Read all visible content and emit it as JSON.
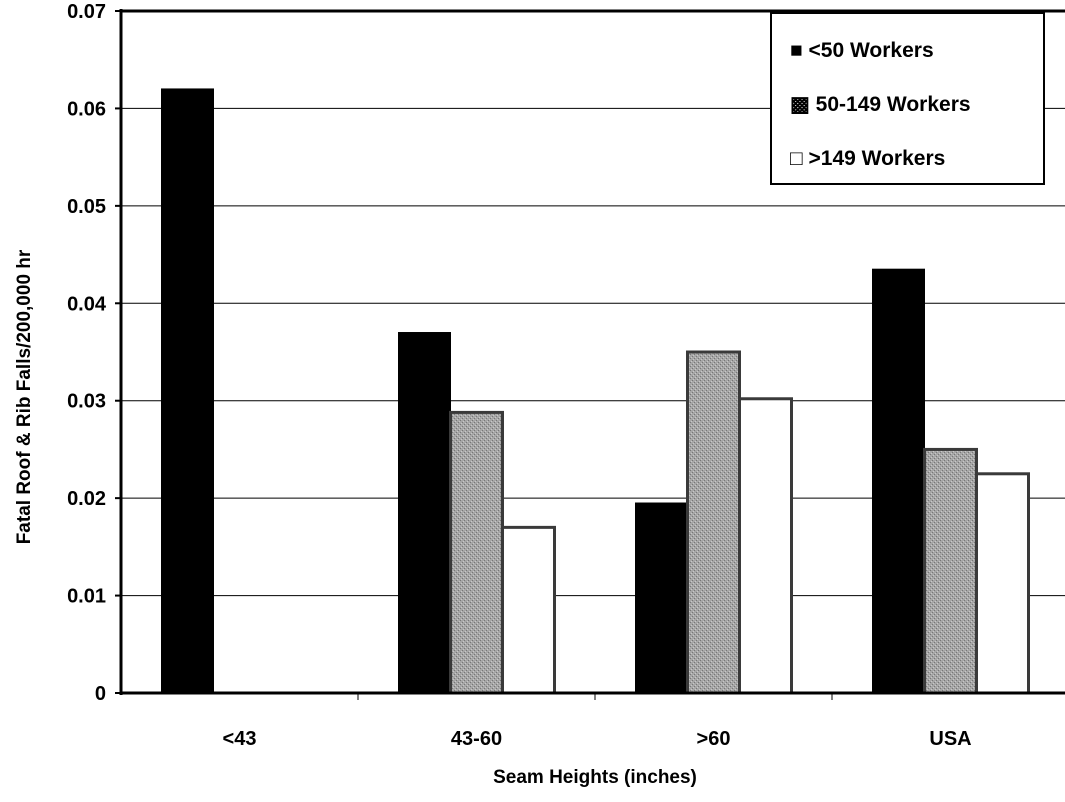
{
  "chart_data": {
    "type": "bar",
    "title": "",
    "xlabel": "Seam Heights (inches)",
    "ylabel": "Fatal Roof & Rib Falls/200,000 hr",
    "categories": [
      "<43",
      "43-60",
      ">60",
      "USA"
    ],
    "ylim": [
      0,
      0.07
    ],
    "yticks": [
      "0",
      "0.01",
      "0.02",
      "0.03",
      "0.04",
      "0.05",
      "0.06",
      "0.07"
    ],
    "grid": true,
    "legend_position": "top-right",
    "series": [
      {
        "name": "<50 Workers",
        "color": "#000000",
        "legend_label": "■ <50 Workers",
        "values": [
          0.062,
          0.037,
          0.0195,
          0.0435
        ]
      },
      {
        "name": "50-149 Workers",
        "color": "#9e9e9e",
        "legend_label": "▩ 50-149 Workers",
        "values": [
          0,
          0.0288,
          0.035,
          0.025
        ]
      },
      {
        "name": ">149 Workers",
        "color": "#ffffff",
        "legend_label": "□ >149 Workers",
        "values": [
          0,
          0.017,
          0.0302,
          0.0225
        ]
      }
    ]
  }
}
